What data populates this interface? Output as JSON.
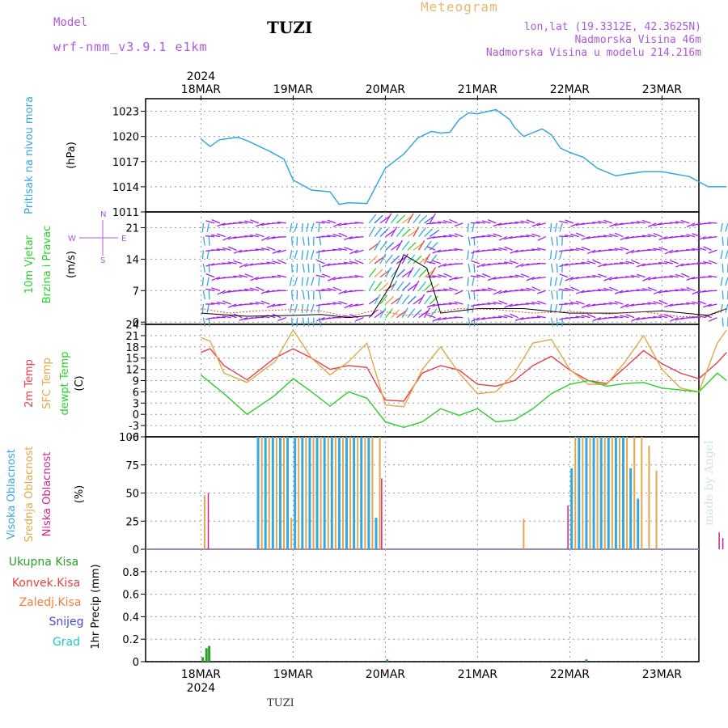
{
  "header": {
    "model_label": "Model",
    "model_name": "wrf-nmm_v3.9.1 e1km",
    "station": "TUZI",
    "product": "Meteogram",
    "lonlat": "lon,lat (19.3312E, 42.3625N)",
    "elevation": "Nadmorska Visina 46m",
    "model_elevation": "Nadmorska Visina u modelu 214.216m"
  },
  "footer": {
    "station": "TUZI",
    "watermark": "made by Angel"
  },
  "colors": {
    "pressure": "#35a8e0",
    "temp2m": "#e8404a",
    "sfc": "#e0a848",
    "dewpt": "#2ad02a",
    "high_cloud": "#35a8e0",
    "mid_cloud": "#e0a848",
    "low_cloud": "#d0248c",
    "precip_total": "#2aa02a",
    "precip_conv": "#e84040",
    "precip_frz": "#f08040",
    "snow": "#4848d8",
    "hail": "#20c8c0",
    "wind_label": "#2ad02a",
    "wind_dir": "#b058d8"
  },
  "chart_data": [
    {
      "panel": "pressure",
      "type": "line",
      "ylabel": "Pritisak na nivou mora",
      "unit": "(hPa)",
      "ylim": [
        1011,
        1024.5
      ],
      "yticks": [
        1011,
        1014,
        1017,
        1020,
        1023
      ],
      "x": [
        0,
        0.1,
        0.2,
        0.4,
        0.5,
        0.75,
        0.9,
        1.0,
        1.2,
        1.4,
        1.5,
        1.6,
        1.8,
        2.0,
        2.2,
        2.35,
        2.5,
        2.6,
        2.7,
        2.8,
        2.9,
        3.0,
        3.2,
        3.35,
        3.4,
        3.5,
        3.7,
        3.8,
        3.9,
        4.0,
        4.15,
        4.3,
        4.5,
        4.6,
        4.8,
        5.0,
        5.1,
        5.3,
        5.5,
        5.6,
        5.7
      ],
      "y": [
        1019.7,
        1018.8,
        1019.6,
        1019.9,
        1019.5,
        1018.2,
        1017.3,
        1014.8,
        1013.6,
        1013.4,
        1011.9,
        1012.1,
        1012.0,
        1016.2,
        1017.9,
        1019.8,
        1020.6,
        1020.4,
        1020.5,
        1022.0,
        1022.8,
        1022.7,
        1023.2,
        1022.0,
        1021.1,
        1020.0,
        1020.9,
        1020.2,
        1018.6,
        1018.1,
        1017.5,
        1016.2,
        1015.3,
        1015.5,
        1015.8,
        1015.8,
        1015.6,
        1015.2,
        1014.0,
        1014.0,
        1014.0
      ]
    },
    {
      "panel": "wind",
      "type": "line",
      "ylabel": [
        "10m Vjetar",
        "Brzina i Pravac"
      ],
      "unit": "(m/s)",
      "ylim": [
        -0.5,
        24.5
      ],
      "yticks": [
        0,
        7,
        14,
        21
      ],
      "compass": {
        "n": "N",
        "s": "S",
        "w": "W",
        "e": "E"
      },
      "series": [
        {
          "x": [
            0,
            0.5,
            1.0,
            1.3,
            1.6,
            1.85,
            2.05,
            2.2,
            2.45,
            2.6,
            3.0,
            3.5,
            4.0,
            4.5,
            5.0,
            5.5,
            5.7
          ],
          "y": [
            2,
            1.3,
            1.5,
            1.7,
            1,
            1.5,
            8,
            15,
            12,
            2,
            3,
            3,
            2,
            2,
            2.5,
            1.5,
            3
          ]
        },
        {
          "x": [
            0,
            0.3,
            0.6,
            1.0,
            1.3,
            1.6,
            1.9,
            2.2,
            2.5,
            2.8,
            3.2,
            3.6,
            4.0,
            4.4,
            4.8,
            5.2,
            5.5,
            5.7
          ],
          "y": [
            3,
            2,
            2.5,
            2.8,
            2.5,
            1.2,
            2.7,
            1.5,
            2,
            3,
            2.8,
            2,
            2.4,
            1.8,
            2.3,
            1.2,
            1.2,
            3
          ]
        }
      ]
    },
    {
      "panel": "temperature",
      "type": "line",
      "ylabel": [
        "2m Temp",
        "SFC Temp",
        "dewpt Temp"
      ],
      "unit": "(C)",
      "ylim": [
        -6,
        24
      ],
      "yticks": [
        -6,
        -3,
        0,
        3,
        6,
        9,
        12,
        15,
        18,
        21,
        24
      ],
      "x": [
        0,
        0.1,
        0.25,
        0.5,
        0.8,
        1.0,
        1.2,
        1.4,
        1.6,
        1.8,
        2.0,
        2.2,
        2.4,
        2.6,
        2.8,
        3.0,
        3.2,
        3.4,
        3.6,
        3.8,
        4.0,
        4.2,
        4.4,
        4.6,
        4.8,
        5.0,
        5.2,
        5.4,
        5.6,
        5.7
      ],
      "series": [
        {
          "name": "2m Temp",
          "y": [
            16.5,
            17.5,
            13,
            9.2,
            15,
            17.5,
            15,
            12,
            13,
            12.5,
            3.8,
            3.5,
            11,
            13,
            11.8,
            8,
            7.5,
            9,
            13,
            15.5,
            11.8,
            9,
            8.2,
            12.5,
            17,
            13.5,
            11,
            9.5,
            13.8,
            16.5
          ]
        },
        {
          "name": "SFC Temp",
          "y": [
            20.5,
            19.5,
            11,
            8.5,
            14,
            22.5,
            15,
            10.5,
            14,
            19,
            2.5,
            2,
            12,
            18,
            11,
            5.5,
            6,
            11,
            19,
            20,
            12,
            8,
            8,
            14,
            21,
            12,
            7,
            6,
            19,
            22.5
          ]
        },
        {
          "name": "dewpt Temp",
          "y": [
            10.5,
            8.5,
            5.5,
            0,
            5,
            9.5,
            6,
            2.2,
            6,
            4.3,
            -2,
            -3.5,
            -2,
            1.5,
            -0.3,
            1.5,
            -2,
            -1.5,
            1.5,
            5.5,
            8,
            9,
            7.5,
            8.2,
            8.5,
            7,
            6.5,
            6,
            11,
            9
          ]
        }
      ]
    },
    {
      "panel": "clouds",
      "type": "bar",
      "ylabel": [
        "Visoka Oblacnost",
        "Srednja Oblacnost",
        "Niska Oblacnost"
      ],
      "unit": "(%)",
      "ylim": [
        0,
        100
      ],
      "yticks": [
        0,
        25,
        50,
        75,
        100
      ],
      "series": [
        {
          "name": "Visoka Oblacnost",
          "x": [
            0.62,
            0.7,
            0.78,
            0.86,
            0.94,
            1.02,
            1.1,
            1.18,
            1.26,
            1.34,
            1.42,
            1.5,
            1.58,
            1.66,
            1.74,
            1.82,
            1.9,
            4.02,
            4.1,
            4.18,
            4.26,
            4.34,
            4.42,
            4.5,
            4.58,
            4.66,
            4.74
          ],
          "y": [
            100,
            100,
            100,
            100,
            100,
            100,
            100,
            100,
            100,
            100,
            100,
            100,
            100,
            100,
            100,
            100,
            28,
            72,
            100,
            100,
            100,
            100,
            100,
            100,
            100,
            72,
            45
          ]
        },
        {
          "name": "Srednja Oblacnost",
          "x": [
            0.04,
            0.66,
            0.74,
            0.82,
            0.9,
            0.98,
            1.06,
            1.14,
            1.22,
            1.3,
            1.38,
            1.46,
            1.54,
            1.62,
            1.7,
            1.78,
            1.86,
            1.94,
            3.5,
            4.06,
            4.14,
            4.22,
            4.3,
            4.38,
            4.46,
            4.54,
            4.62,
            4.7,
            4.78,
            4.86,
            4.94
          ],
          "y": [
            48,
            100,
            100,
            100,
            100,
            28,
            100,
            100,
            100,
            100,
            100,
            100,
            100,
            100,
            100,
            100,
            100,
            100,
            27,
            100,
            100,
            100,
            100,
            100,
            100,
            100,
            100,
            100,
            100,
            92,
            70
          ]
        },
        {
          "name": "Niska Oblacnost",
          "x": [
            0.08,
            1.96,
            3.98,
            5.62,
            5.66
          ],
          "y": [
            50,
            63,
            39,
            15,
            10
          ]
        }
      ]
    },
    {
      "panel": "precip",
      "type": "bar",
      "ylabel": "1hr Precip",
      "unit": "(mm)",
      "ylim": [
        0,
        1.0
      ],
      "yticks": [
        0,
        0.2,
        0.4,
        0.6,
        0.8
      ],
      "legend": [
        "Ukupna Kisa",
        "Konvek.Kisa",
        "Zaledj.Kisa",
        "Snijeg",
        "Grad"
      ],
      "series": [
        {
          "name": "Ukupna Kisa",
          "x": [
            0.02,
            0.06,
            0.09,
            2.02,
            4.18
          ],
          "y": [
            0.04,
            0.12,
            0.14,
            0.02,
            0.02
          ]
        }
      ]
    }
  ],
  "x_axis": {
    "year": "2024",
    "labels": [
      "18MAR",
      "19MAR",
      "20MAR",
      "21MAR",
      "22MAR",
      "23MAR"
    ]
  }
}
